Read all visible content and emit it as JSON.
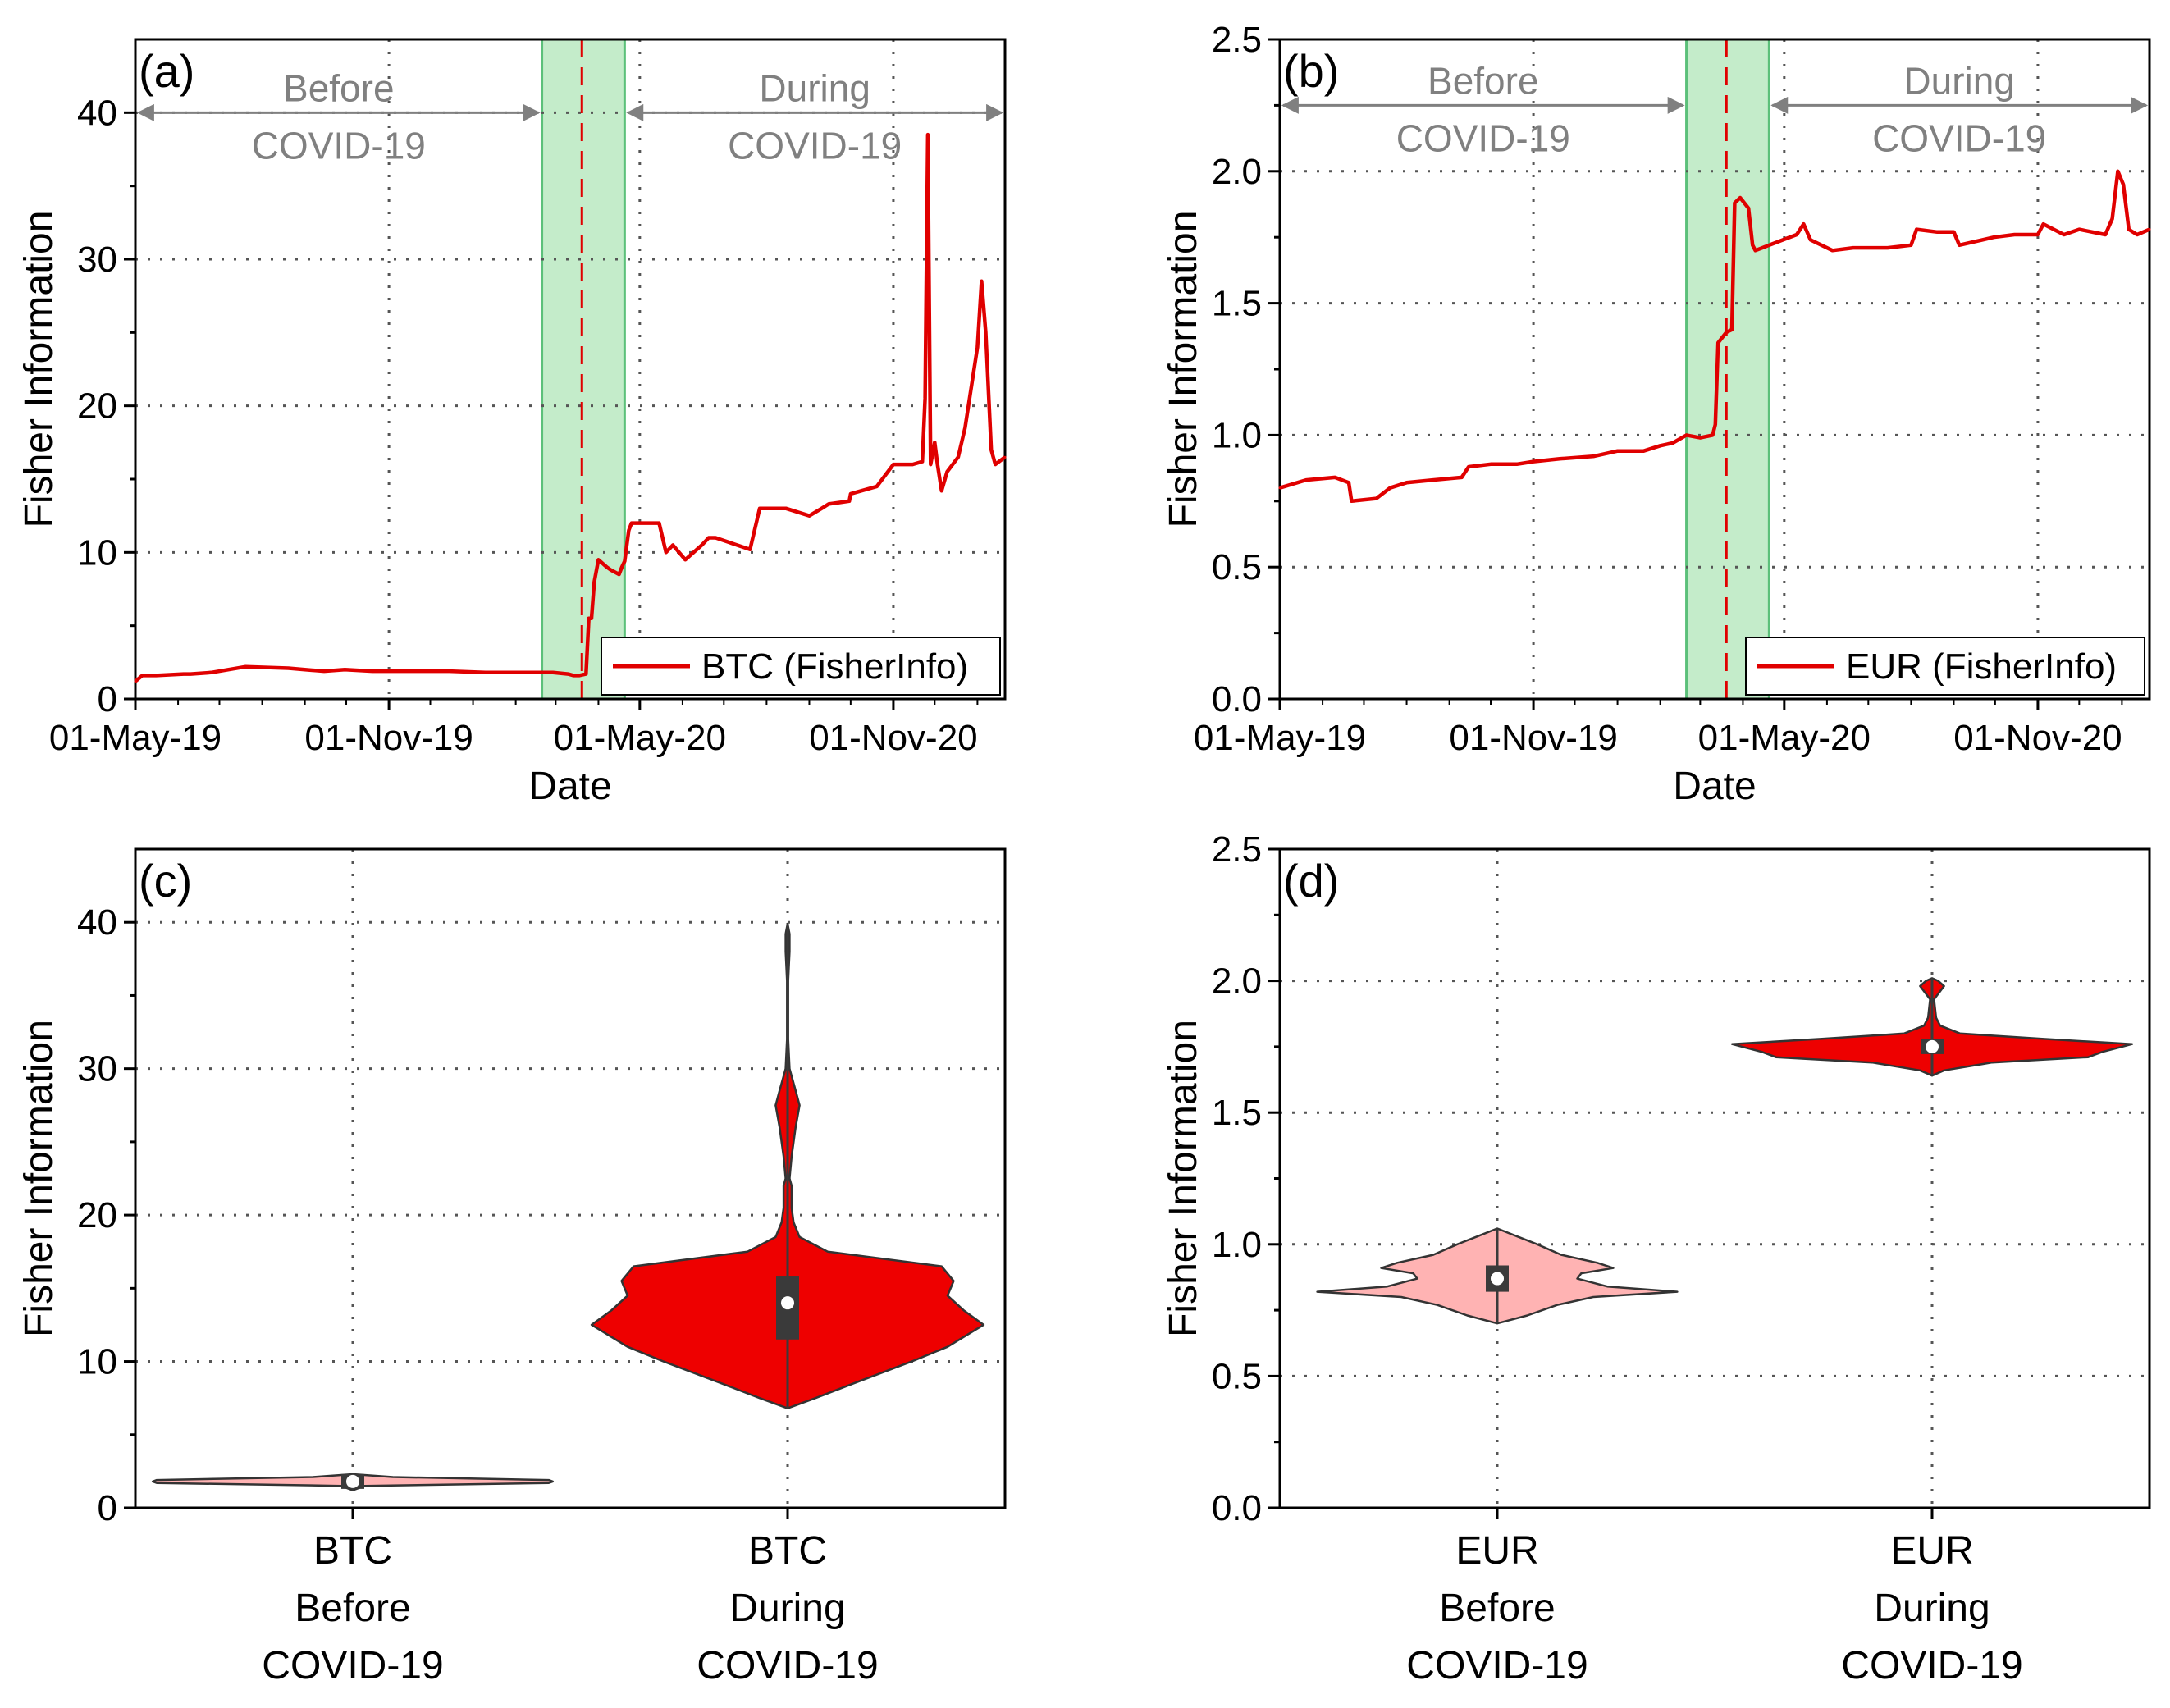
{
  "colors": {
    "series": "#e00000",
    "shade": "#c4ecca",
    "shade_edge": "#5cc07a",
    "annotation": "#808080",
    "violin_before": "#ffb3b3",
    "violin_during": "#ee0000",
    "box": "#3a3a3a"
  },
  "chart_data": [
    {
      "panel": "(a)",
      "type": "line",
      "xlabel": "Date",
      "ylabel": "Fisher Information",
      "xlim": [
        "2019-05-01",
        "2021-01-21"
      ],
      "ylim": [
        0,
        45
      ],
      "yticks": [
        0,
        10,
        20,
        30,
        40
      ],
      "yticklabels": [
        "0",
        "10",
        "20",
        "30",
        "40"
      ],
      "xticks": [
        "2019-05-01",
        "2019-11-01",
        "2020-05-01",
        "2020-11-01"
      ],
      "xticklabels": [
        "01-May-19",
        "01-Nov-19",
        "01-May-20",
        "01-Nov-20"
      ],
      "grid": true,
      "shaded_region": [
        "2020-02-20",
        "2020-04-20"
      ],
      "event_line": "2020-03-20",
      "annotations": [
        {
          "text_lines": [
            "Before",
            "COVID-19"
          ],
          "arrow": [
            "2019-05-01",
            "2020-02-20"
          ]
        },
        {
          "text_lines": [
            "During",
            "COVID-19"
          ],
          "arrow": [
            "2020-04-20",
            "2021-01-21"
          ]
        }
      ],
      "legend": {
        "placement": "bottom-right",
        "entries": [
          "BTC (FisherInfo)"
        ]
      },
      "series": [
        {
          "name": "BTC (FisherInfo)",
          "x": [
            "2019-05-01",
            "2019-05-06",
            "2019-05-16",
            "2019-06-05",
            "2019-06-10",
            "2019-06-25",
            "2019-07-20",
            "2019-08-20",
            "2019-09-01",
            "2019-09-15",
            "2019-09-30",
            "2019-10-20",
            "2019-11-15",
            "2019-12-15",
            "2020-01-10",
            "2020-02-01",
            "2020-02-28",
            "2020-03-10",
            "2020-03-14",
            "2020-03-18",
            "2020-03-23",
            "2020-03-25",
            "2020-03-27",
            "2020-03-29",
            "2020-04-01",
            "2020-04-07",
            "2020-04-10",
            "2020-04-16",
            "2020-04-18",
            "2020-04-20",
            "2020-04-23",
            "2020-04-25",
            "2020-05-15",
            "2020-05-20",
            "2020-05-25",
            "2020-06-03",
            "2020-06-15",
            "2020-06-20",
            "2020-06-25",
            "2020-07-20",
            "2020-07-27",
            "2020-08-01",
            "2020-08-15",
            "2020-09-01",
            "2020-09-10",
            "2020-09-15",
            "2020-09-30",
            "2020-10-01",
            "2020-10-20",
            "2020-11-01",
            "2020-11-15",
            "2020-11-22",
            "2020-11-24",
            "2020-11-26",
            "2020-11-28",
            "2020-12-01",
            "2020-12-03",
            "2020-12-06",
            "2020-12-10",
            "2020-12-18",
            "2020-12-23",
            "2021-01-01",
            "2021-01-04",
            "2021-01-07",
            "2021-01-11",
            "2021-01-14",
            "2021-01-21"
          ],
          "values": [
            1.2,
            1.6,
            1.6,
            1.7,
            1.7,
            1.8,
            2.2,
            2.1,
            2.0,
            1.9,
            2.0,
            1.9,
            1.9,
            1.9,
            1.8,
            1.8,
            1.8,
            1.7,
            1.6,
            1.6,
            1.7,
            5.5,
            5.5,
            8.0,
            9.5,
            9.0,
            8.8,
            8.5,
            9.0,
            9.4,
            11.5,
            12.0,
            12.0,
            10.0,
            10.5,
            9.5,
            10.5,
            11.0,
            11.0,
            10.2,
            13.0,
            13.0,
            13.0,
            12.5,
            13.0,
            13.3,
            13.5,
            14.0,
            14.5,
            16.0,
            16.0,
            16.2,
            20.5,
            38.5,
            16.0,
            17.5,
            16.0,
            14.2,
            15.5,
            16.5,
            18.5,
            24.0,
            28.5,
            25.0,
            17.0,
            16.0,
            16.5
          ]
        }
      ]
    },
    {
      "panel": "(b)",
      "type": "line",
      "xlabel": "Date",
      "ylabel": "Fisher Information",
      "xlim": [
        "2019-05-01",
        "2021-01-21"
      ],
      "ylim": [
        0,
        2.5
      ],
      "yticks": [
        0,
        0.5,
        1.0,
        1.5,
        2.0,
        2.5
      ],
      "yticklabels": [
        "0.0",
        "0.5",
        "1.0",
        "1.5",
        "2.0",
        "2.5"
      ],
      "xticks": [
        "2019-05-01",
        "2019-11-01",
        "2020-05-01",
        "2020-11-01"
      ],
      "xticklabels": [
        "01-May-19",
        "01-Nov-19",
        "01-May-20",
        "01-Nov-20"
      ],
      "grid": true,
      "shaded_region": [
        "2020-02-20",
        "2020-04-20"
      ],
      "event_line": "2020-03-20",
      "annotations": [
        {
          "text_lines": [
            "Before",
            "COVID-19"
          ],
          "arrow": [
            "2019-05-01",
            "2020-02-20"
          ]
        },
        {
          "text_lines": [
            "During",
            "COVID-19"
          ],
          "arrow": [
            "2020-04-20",
            "2021-01-21"
          ]
        }
      ],
      "legend": {
        "placement": "bottom-right",
        "entries": [
          "EUR (FisherInfo)"
        ]
      },
      "series": [
        {
          "name": "EUR (FisherInfo)",
          "x": [
            "2019-05-01",
            "2019-05-20",
            "2019-06-10",
            "2019-06-20",
            "2019-06-22",
            "2019-07-10",
            "2019-07-20",
            "2019-08-01",
            "2019-08-20",
            "2019-09-10",
            "2019-09-15",
            "2019-10-01",
            "2019-10-20",
            "2019-11-01",
            "2019-11-20",
            "2019-12-15",
            "2020-01-01",
            "2020-01-20",
            "2020-02-01",
            "2020-02-10",
            "2020-02-20",
            "2020-03-01",
            "2020-03-10",
            "2020-03-12",
            "2020-03-14",
            "2020-03-20",
            "2020-03-24",
            "2020-03-26",
            "2020-03-30",
            "2020-04-05",
            "2020-04-08",
            "2020-04-10",
            "2020-04-15",
            "2020-04-20",
            "2020-05-10",
            "2020-05-15",
            "2020-05-20",
            "2020-06-05",
            "2020-06-20",
            "2020-07-15",
            "2020-08-01",
            "2020-08-05",
            "2020-08-20",
            "2020-09-01",
            "2020-09-05",
            "2020-09-30",
            "2020-10-15",
            "2020-11-01",
            "2020-11-05",
            "2020-11-20",
            "2020-12-01",
            "2020-12-20",
            "2020-12-25",
            "2020-12-29",
            "2021-01-02",
            "2021-01-06",
            "2021-01-12",
            "2021-01-21"
          ],
          "values": [
            0.8,
            0.83,
            0.84,
            0.82,
            0.75,
            0.76,
            0.8,
            0.82,
            0.83,
            0.84,
            0.88,
            0.89,
            0.89,
            0.9,
            0.91,
            0.92,
            0.94,
            0.94,
            0.96,
            0.97,
            1.0,
            0.99,
            1.0,
            1.04,
            1.35,
            1.39,
            1.4,
            1.88,
            1.9,
            1.86,
            1.72,
            1.7,
            1.71,
            1.72,
            1.76,
            1.8,
            1.74,
            1.7,
            1.71,
            1.71,
            1.72,
            1.78,
            1.77,
            1.77,
            1.72,
            1.75,
            1.76,
            1.76,
            1.8,
            1.76,
            1.78,
            1.76,
            1.82,
            2.0,
            1.95,
            1.78,
            1.76,
            1.78
          ]
        }
      ]
    },
    {
      "panel": "(c)",
      "type": "violin",
      "ylabel": "Fisher Information",
      "ylim": [
        0,
        45
      ],
      "yticks": [
        0,
        10,
        20,
        30,
        40
      ],
      "yticklabels": [
        "0",
        "10",
        "20",
        "30",
        "40"
      ],
      "grid": true,
      "categories": [
        {
          "label_lines": [
            "BTC",
            "Before",
            "COVID-19"
          ],
          "color_key": "violin_before",
          "median": 1.8,
          "q1": 1.65,
          "q3": 1.95,
          "min": 1.2,
          "max": 2.3,
          "profile": [
            [
              1.2,
              0.0
            ],
            [
              1.5,
              0.06
            ],
            [
              1.7,
              0.98
            ],
            [
              1.8,
              1.0
            ],
            [
              1.9,
              0.98
            ],
            [
              2.1,
              0.2
            ],
            [
              2.3,
              0.0
            ]
          ]
        },
        {
          "label_lines": [
            "BTC",
            "During",
            "COVID-19"
          ],
          "color_key": "violin_during",
          "median": 14.0,
          "q1": 11.5,
          "q3": 15.8,
          "min": 6.8,
          "max": 39.9,
          "profile": [
            [
              6.8,
              0.0
            ],
            [
              7.5,
              0.14
            ],
            [
              8.5,
              0.33
            ],
            [
              10.0,
              0.62
            ],
            [
              11.0,
              0.8
            ],
            [
              12.5,
              0.98
            ],
            [
              13.5,
              0.88
            ],
            [
              14.5,
              0.8
            ],
            [
              15.5,
              0.83
            ],
            [
              16.5,
              0.77
            ],
            [
              17.5,
              0.2
            ],
            [
              18.5,
              0.06
            ],
            [
              19.5,
              0.03
            ],
            [
              20.5,
              0.02
            ],
            [
              22.0,
              0.02
            ],
            [
              22.5,
              0.01
            ],
            [
              24.0,
              0.02
            ],
            [
              26.0,
              0.04
            ],
            [
              27.5,
              0.06
            ],
            [
              28.5,
              0.04
            ],
            [
              30.0,
              0.01
            ],
            [
              32.0,
              0.003
            ],
            [
              36.0,
              0.003
            ],
            [
              38.0,
              0.01
            ],
            [
              39.2,
              0.01
            ],
            [
              39.9,
              0.0
            ]
          ]
        }
      ]
    },
    {
      "panel": "(d)",
      "type": "violin",
      "ylabel": "Fisher Information",
      "ylim": [
        0,
        2.5
      ],
      "yticks": [
        0,
        0.5,
        1.0,
        1.5,
        2.0,
        2.5
      ],
      "yticklabels": [
        "0.0",
        "0.5",
        "1.0",
        "1.5",
        "2.0",
        "2.5"
      ],
      "grid": true,
      "categories": [
        {
          "label_lines": [
            "EUR",
            "Before",
            "COVID-19"
          ],
          "color_key": "violin_before",
          "median": 0.87,
          "q1": 0.82,
          "q3": 0.92,
          "min": 0.7,
          "max": 1.06,
          "profile": [
            [
              0.7,
              0.0
            ],
            [
              0.73,
              0.15
            ],
            [
              0.77,
              0.3
            ],
            [
              0.8,
              0.48
            ],
            [
              0.82,
              0.9
            ],
            [
              0.84,
              0.55
            ],
            [
              0.87,
              0.4
            ],
            [
              0.89,
              0.42
            ],
            [
              0.91,
              0.58
            ],
            [
              0.93,
              0.5
            ],
            [
              0.96,
              0.32
            ],
            [
              1.0,
              0.2
            ],
            [
              1.03,
              0.1
            ],
            [
              1.06,
              0.0
            ]
          ]
        },
        {
          "label_lines": [
            "EUR",
            "During",
            "COVID-19"
          ],
          "color_key": "violin_during",
          "median": 1.75,
          "q1": 1.73,
          "q3": 1.77,
          "min": 1.64,
          "max": 2.01,
          "profile": [
            [
              1.64,
              0.0
            ],
            [
              1.66,
              0.06
            ],
            [
              1.69,
              0.3
            ],
            [
              1.71,
              0.78
            ],
            [
              1.73,
              0.85
            ],
            [
              1.75,
              0.95
            ],
            [
              1.76,
              1.0
            ],
            [
              1.78,
              0.55
            ],
            [
              1.8,
              0.14
            ],
            [
              1.83,
              0.04
            ],
            [
              1.86,
              0.02
            ],
            [
              1.93,
              0.01
            ],
            [
              1.96,
              0.04
            ],
            [
              1.98,
              0.06
            ],
            [
              2.0,
              0.03
            ],
            [
              2.01,
              0.0
            ]
          ]
        }
      ]
    }
  ]
}
